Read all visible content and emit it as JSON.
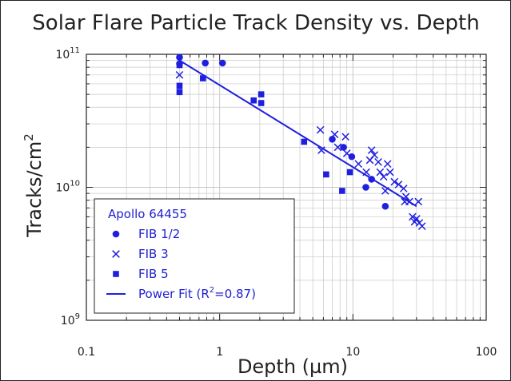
{
  "colors": {
    "series": "#1f1fe0",
    "axis": "#222222",
    "grid": "#c8c8c8"
  },
  "chart_data": {
    "type": "scatter",
    "title": "Solar Flare Particle Track Density vs. Depth",
    "xlabel": "Depth (µm)",
    "ylabel": "Tracks/cm",
    "ylabel_sup": "2",
    "xscale": "log",
    "yscale": "log",
    "xlim": [
      0.1,
      100
    ],
    "ylim": [
      1000000000.0,
      100000000000.0
    ],
    "grid": true,
    "x_ticks": [
      {
        "value": 0.1,
        "label": "0.1"
      },
      {
        "value": 1,
        "label": "1"
      },
      {
        "value": 10,
        "label": "10"
      },
      {
        "value": 100,
        "label": "100"
      }
    ],
    "y_ticks": [
      {
        "value": 1000000000.0,
        "base": "10",
        "exp": "9"
      },
      {
        "value": 10000000000.0,
        "base": "10",
        "exp": "10"
      },
      {
        "value": 100000000000.0,
        "base": "10",
        "exp": "11"
      }
    ],
    "legend": {
      "title": "Apollo 64455",
      "position": "bottom-left",
      "entries": [
        {
          "label": "FIB 1/2",
          "marker": "circle"
        },
        {
          "label": "FIB 3",
          "marker": "x"
        },
        {
          "label": "FIB 5",
          "marker": "square"
        },
        {
          "label": "Power Fit (R",
          "sup": "2",
          "label_end": "=0.87)",
          "marker": "line"
        }
      ]
    },
    "series": [
      {
        "name": "FIB 1/2",
        "marker": "circle",
        "points": [
          [
            0.5,
            95000000000.0
          ],
          [
            0.5,
            85000000000.0
          ],
          [
            0.78,
            86000000000.0
          ],
          [
            1.05,
            86000000000.0
          ],
          [
            7.0,
            23000000000.0
          ],
          [
            8.5,
            20000000000.0
          ],
          [
            9.8,
            17000000000.0
          ],
          [
            12.5,
            10000000000.0
          ],
          [
            13.8,
            11500000000.0
          ],
          [
            17.5,
            7200000000.0
          ]
        ]
      },
      {
        "name": "FIB 3",
        "marker": "x",
        "points": [
          [
            0.5,
            70000000000.0
          ],
          [
            5.7,
            27000000000.0
          ],
          [
            5.8,
            19000000000.0
          ],
          [
            7.3,
            25000000000.0
          ],
          [
            7.7,
            20000000000.0
          ],
          [
            8.8,
            24000000000.0
          ],
          [
            9.0,
            18000000000.0
          ],
          [
            11.0,
            15000000000.0
          ],
          [
            12.6,
            13000000000.0
          ],
          [
            13.4,
            16000000000.0
          ],
          [
            13.8,
            19000000000.0
          ],
          [
            14.5,
            17500000000.0
          ],
          [
            15.5,
            15500000000.0
          ],
          [
            16.0,
            13000000000.0
          ],
          [
            17.0,
            12000000000.0
          ],
          [
            18.2,
            15000000000.0
          ],
          [
            19.0,
            13000000000.0
          ],
          [
            17.5,
            9400000000.0
          ],
          [
            20.5,
            11000000000.0
          ],
          [
            22.0,
            10500000000.0
          ],
          [
            24.0,
            9800000000.0
          ],
          [
            25.0,
            8500000000.0
          ],
          [
            26.5,
            7800000000.0
          ],
          [
            24.5,
            7800000000.0
          ],
          [
            31.0,
            7800000000.0
          ],
          [
            28.0,
            6000000000.0
          ],
          [
            30.0,
            5800000000.0
          ],
          [
            29.0,
            5500000000.0
          ],
          [
            31.5,
            5400000000.0
          ],
          [
            33.0,
            5100000000.0
          ]
        ]
      },
      {
        "name": "FIB 5",
        "marker": "square",
        "points": [
          [
            0.5,
            83000000000.0
          ],
          [
            0.5,
            58000000000.0
          ],
          [
            0.5,
            52000000000.0
          ],
          [
            0.75,
            66000000000.0
          ],
          [
            1.8,
            45000000000.0
          ],
          [
            2.05,
            50000000000.0
          ],
          [
            2.05,
            43000000000.0
          ],
          [
            4.3,
            22000000000.0
          ],
          [
            6.3,
            12500000000.0
          ],
          [
            8.3,
            9400000000.0
          ],
          [
            9.5,
            13000000000.0
          ]
        ]
      }
    ],
    "fit": {
      "name": "Power Fit",
      "r_squared": 0.87,
      "points": [
        [
          0.5,
          90000000000.0
        ],
        [
          30,
          7200000000.0
        ]
      ]
    }
  }
}
